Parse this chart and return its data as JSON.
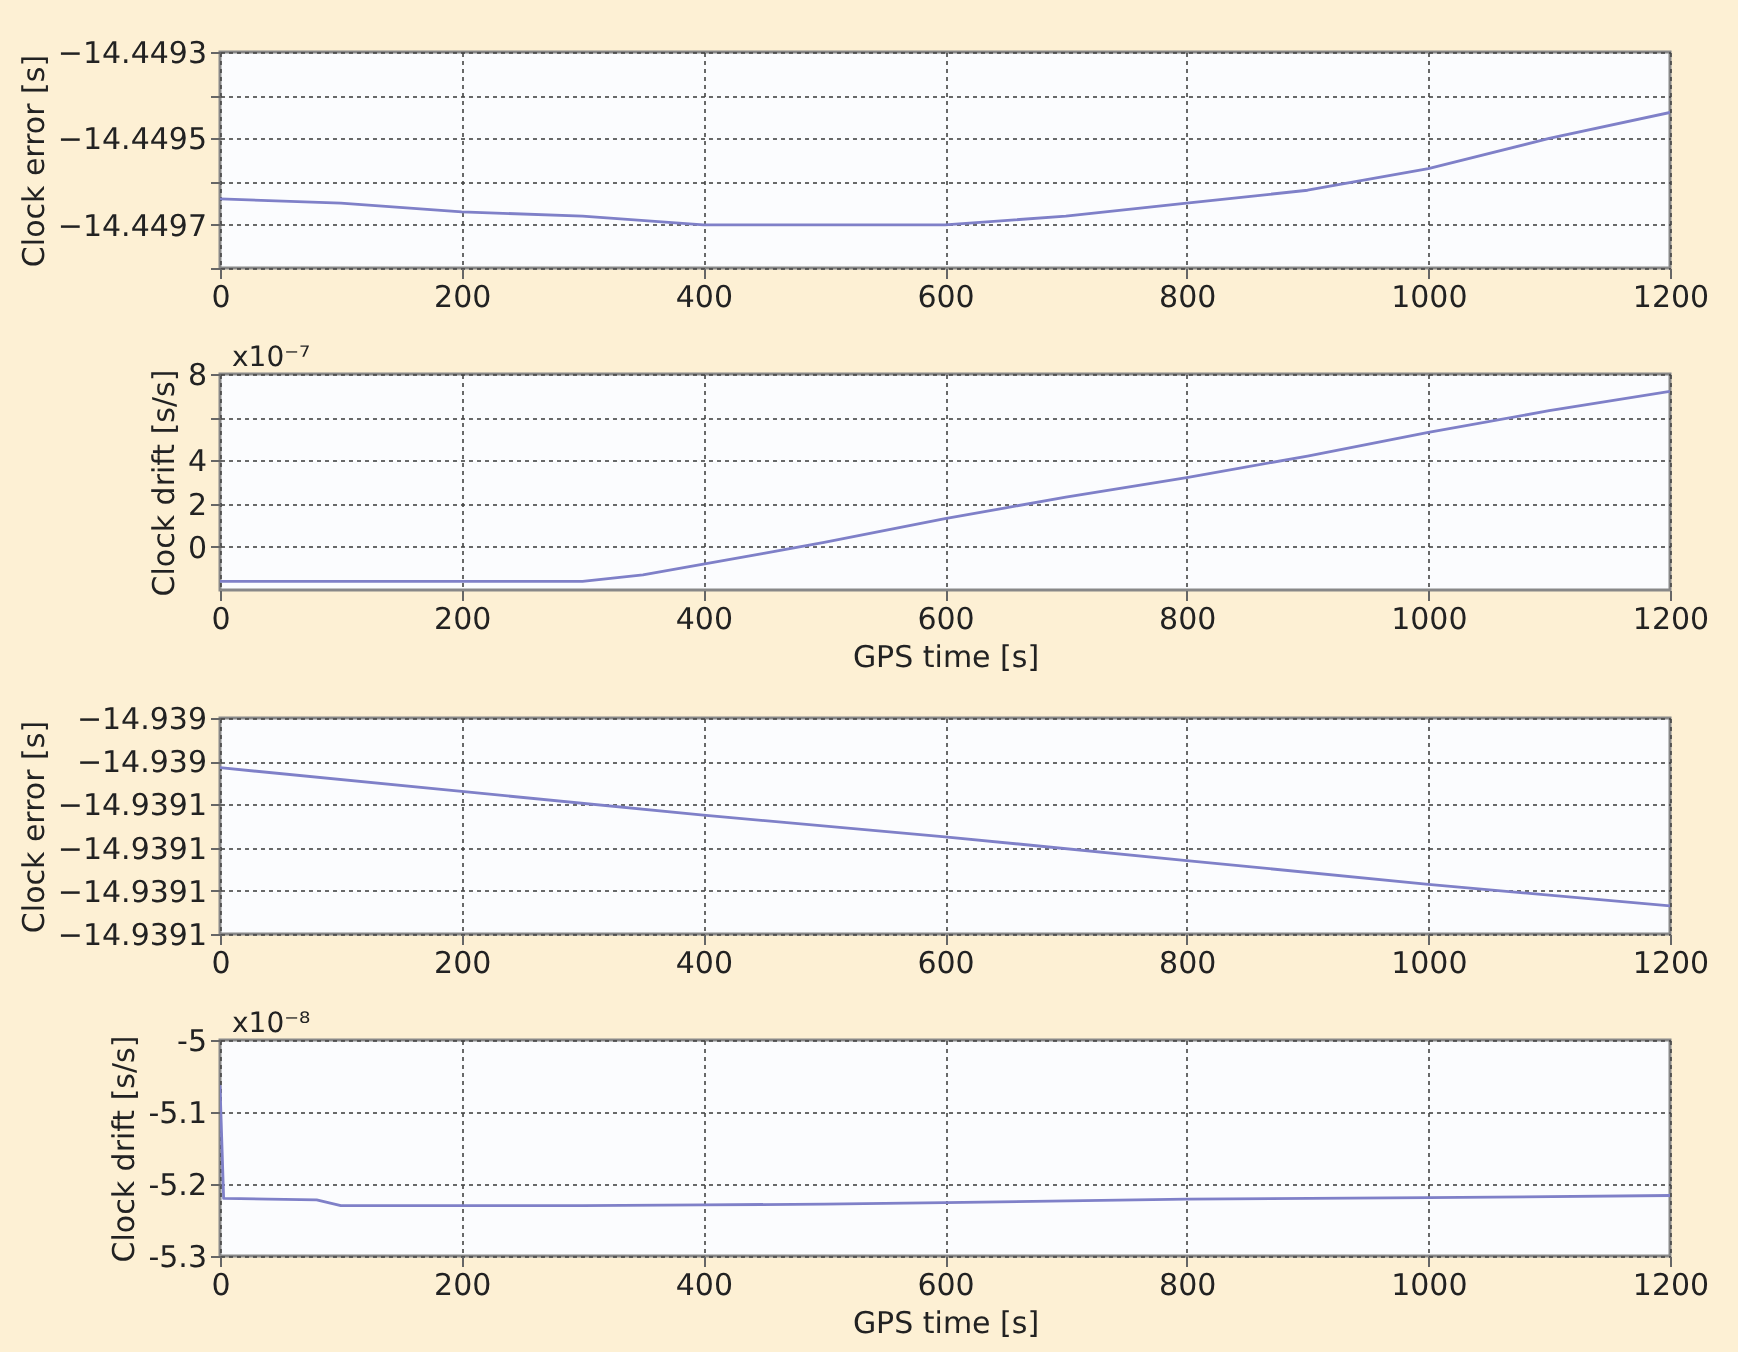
{
  "chart_data": [
    {
      "type": "line",
      "ylabel": "Clock error [s]",
      "color": "#7f80c8",
      "grid": true,
      "x": [
        0,
        100,
        200,
        300,
        400,
        500,
        600,
        700,
        800,
        900,
        1000,
        1100,
        1200
      ],
      "values": [
        -14.44964,
        -14.44965,
        -14.44967,
        -14.44968,
        -14.4497,
        -14.4497,
        -14.4497,
        -14.44968,
        -14.44965,
        -14.44962,
        -14.44957,
        -14.4495,
        -14.44944
      ],
      "xlim": [
        0,
        1200
      ],
      "xticks": [
        0,
        200,
        400,
        600,
        800,
        1000,
        1200
      ],
      "ylim": [
        -14.4498,
        -14.4493
      ],
      "yticks": [
        {
          "value": -14.4498,
          "label": null
        },
        {
          "value": -14.4497,
          "label": "−14.4497"
        },
        {
          "value": -14.4496,
          "label": null
        },
        {
          "value": -14.4495,
          "label": "−14.4495"
        },
        {
          "value": -14.4494,
          "label": null
        },
        {
          "value": -14.4493,
          "label": "−14.4493"
        }
      ]
    },
    {
      "type": "line",
      "ylabel": "Clock drift [s/s]",
      "xlabel": "GPS time [s]",
      "annotations": [
        "x10⁻⁷"
      ],
      "color": "#7f80c8",
      "grid": true,
      "x": [
        0,
        100,
        200,
        300,
        350,
        400,
        450,
        500,
        600,
        700,
        800,
        900,
        1000,
        1100,
        1200
      ],
      "values": [
        -1.6,
        -1.6,
        -1.6,
        -1.6,
        -1.3,
        -0.8,
        -0.3,
        0.2,
        1.3,
        2.3,
        3.2,
        4.2,
        5.3,
        6.3,
        7.2
      ],
      "xlim": [
        0,
        1200
      ],
      "xticks": [
        0,
        200,
        400,
        600,
        800,
        1000,
        1200
      ],
      "ylim": [
        -2,
        8
      ],
      "yticks": [
        0,
        2,
        4,
        {
          "value": 6,
          "label": null
        },
        8
      ]
    },
    {
      "type": "line",
      "ylabel": "Clock error [s]",
      "color": "#7f80c8",
      "grid": true,
      "x": [
        0,
        200,
        400,
        600,
        800,
        1000,
        1200
      ],
      "values": [
        -14.939043,
        -14.939054,
        -14.939065,
        -14.939075,
        -14.939086,
        -14.939097,
        -14.939107
      ],
      "xlim": [
        0,
        1200
      ],
      "xticks": [
        0,
        200,
        400,
        600,
        800,
        1000,
        1200
      ],
      "ylim": [
        -14.93912,
        -14.93902
      ],
      "yticks": [
        {
          "value": -14.93912,
          "label": "−14.9391"
        },
        {
          "value": -14.9391,
          "label": "−14.9391"
        },
        {
          "value": -14.93908,
          "label": "−14.9391"
        },
        {
          "value": -14.93906,
          "label": "−14.9391"
        },
        {
          "value": -14.93904,
          "label": "−14.939"
        },
        {
          "value": -14.93902,
          "label": "−14.939"
        }
      ]
    },
    {
      "type": "line",
      "ylabel": "Clock drift [s/s]",
      "xlabel": "GPS time [s]",
      "annotations": [
        "x10⁻⁸"
      ],
      "color": "#7f80c8",
      "grid": true,
      "x": [
        0,
        3,
        40,
        80,
        100,
        200,
        300,
        400,
        500,
        600,
        800,
        1000,
        1200
      ],
      "values": [
        -5.063,
        -5.22,
        -5.221,
        -5.222,
        -5.23,
        -5.23,
        -5.23,
        -5.229,
        -5.228,
        -5.226,
        -5.221,
        -5.219,
        -5.216
      ],
      "xlim": [
        0,
        1200
      ],
      "xticks": [
        0,
        200,
        400,
        600,
        800,
        1000,
        1200
      ],
      "ylim": [
        -5.3,
        -5
      ],
      "yticks": [
        {
          "value": -5.3,
          "label": "-5.3"
        },
        {
          "value": -5.2,
          "label": "-5.2"
        },
        {
          "value": -5.1,
          "label": "-5.1"
        },
        {
          "value": -5,
          "label": "-5"
        }
      ]
    }
  ]
}
